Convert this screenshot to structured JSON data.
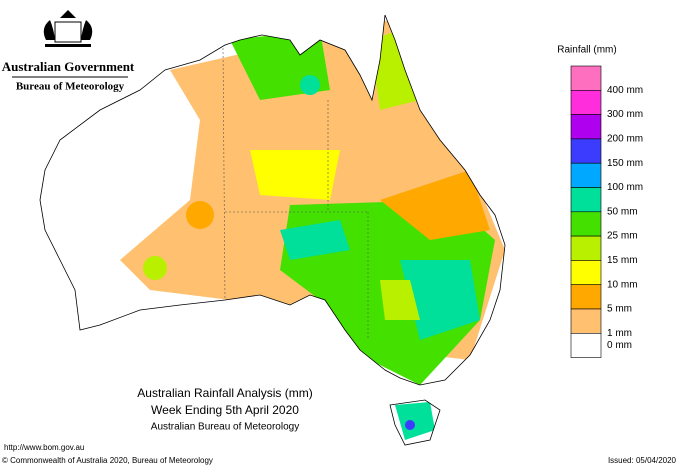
{
  "header": {
    "government": "Australian Government",
    "agency": "Bureau of Meteorology"
  },
  "map": {
    "title": [
      "Australian Rainfall Analysis (mm)",
      "Week Ending 5th April 2020",
      "Australian Bureau of Meteorology"
    ]
  },
  "legend": {
    "title": "Rainfall (mm)",
    "colors": [
      "#ff6fc0",
      "#ff2ddc",
      "#b000f0",
      "#3c3cff",
      "#00a8ff",
      "#00e09a",
      "#44e000",
      "#b8f000",
      "#ffff00",
      "#ffa800",
      "#ffc070",
      "#ffffff"
    ],
    "labels": [
      "400 mm",
      "300 mm",
      "200 mm",
      "150 mm",
      "100 mm",
      "50 mm",
      "25 mm",
      "15 mm",
      "10 mm",
      "5 mm",
      "1 mm",
      "0 mm"
    ]
  },
  "footer": {
    "url": "http://www.bom.gov.au",
    "copyright": "© Commonwealth of Australia 2020, Bureau of Meteorology",
    "issued": "Issued: 05/04/2020"
  }
}
